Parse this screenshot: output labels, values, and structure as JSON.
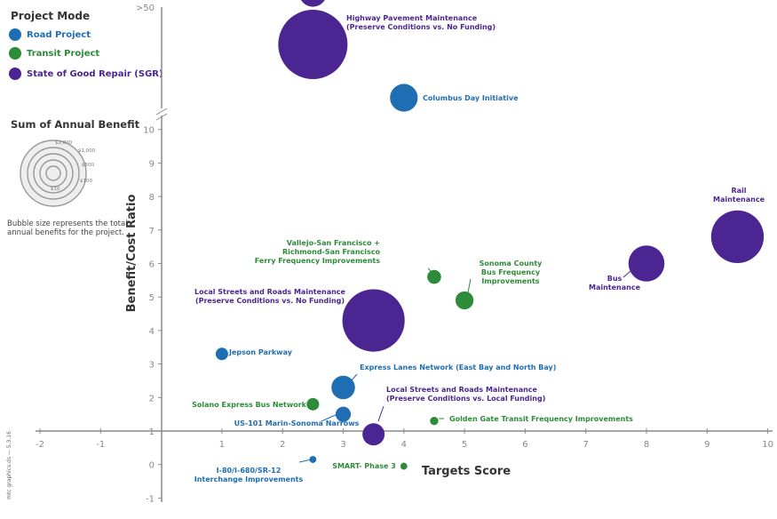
{
  "legend": {
    "title": "Project Mode",
    "items": [
      {
        "label": "Road Project",
        "color": "#1f6db3"
      },
      {
        "label": "Transit Project",
        "color": "#2e8b3a"
      },
      {
        "label": "State of Good Repair (SGR)",
        "color": "#4b2591"
      }
    ]
  },
  "size_legend": {
    "title": "Sum of Annual Benefit",
    "rings": [
      "$2,000",
      "$1,000",
      "$500",
      "$100",
      "$10"
    ],
    "note": "Bubble size represents the total annual benefits for the project."
  },
  "credit": "mtc graphics.ds — 5.3.16",
  "chart_data": {
    "type": "scatter",
    "xlabel": "Targets Score",
    "ylabel": "Benefit/Cost Ratio",
    "xlim": [
      -2,
      10
    ],
    "ylim": [
      -1,
      10
    ],
    "x_ticks": [
      -2,
      -1,
      1,
      2,
      3,
      4,
      5,
      6,
      7,
      8,
      9,
      10
    ],
    "y_ticks": [
      -1,
      0,
      1,
      2,
      3,
      4,
      5,
      6,
      7,
      8,
      9,
      10
    ],
    "y_break_label": ">50",
    "grid": false,
    "points": [
      {
        "label": "Highway Pavement Maintenance\n(Preserve Conditions vs. No Funding)",
        "x": 2.5,
        "y": ">50",
        "size": 5,
        "mode": "SGR"
      },
      {
        "label": "",
        "x": 2.5,
        "y": ">50",
        "size": 2,
        "mode": "SGR"
      },
      {
        "label": "Columbus Day Initiative",
        "x": 4.0,
        "y": 10.3,
        "size": 2,
        "mode": "Road"
      },
      {
        "label": "Rail\nMaintenance",
        "x": 9.5,
        "y": 6.8,
        "size": 3.8,
        "mode": "SGR"
      },
      {
        "label": "Bus\nMaintenance",
        "x": 8.0,
        "y": 6.0,
        "size": 2.6,
        "mode": "SGR"
      },
      {
        "label": "Vallejo-San Francisco +\nRichmond-San Francisco\nFerry Frequency Improvements",
        "x": 4.5,
        "y": 5.6,
        "size": 1,
        "mode": "Transit"
      },
      {
        "label": "Sonoma County\nBus Frequency\nImprovements",
        "x": 5.0,
        "y": 4.9,
        "size": 1.3,
        "mode": "Transit"
      },
      {
        "label": "Local Streets and Roads Maintenance\n(Preserve Conditions vs. No Funding)",
        "x": 3.5,
        "y": 4.3,
        "size": 4.5,
        "mode": "SGR"
      },
      {
        "label": "Jepson Parkway",
        "x": 1.0,
        "y": 3.3,
        "size": 0.9,
        "mode": "Road"
      },
      {
        "label": "Express Lanes Network (East Bay and North Bay)",
        "x": 3.0,
        "y": 2.3,
        "size": 1.7,
        "mode": "Road"
      },
      {
        "label": "Solano Express Bus Network",
        "x": 2.5,
        "y": 1.8,
        "size": 0.9,
        "mode": "Transit"
      },
      {
        "label": "US-101 Marin-Sonoma Narrows",
        "x": 3.0,
        "y": 1.5,
        "size": 1.1,
        "mode": "Road"
      },
      {
        "label": "Local Streets and Roads Maintenance\n(Preserve Conditions vs. Local Funding)",
        "x": 3.5,
        "y": 0.9,
        "size": 1.6,
        "mode": "SGR"
      },
      {
        "label": "Golden Gate Transit Frequency Improvements",
        "x": 4.5,
        "y": 1.3,
        "size": 0.6,
        "mode": "Transit"
      },
      {
        "label": "I-80/I-680/SR-12\nInterchange Improvements",
        "x": 2.5,
        "y": 0.15,
        "size": 0.5,
        "mode": "Road"
      },
      {
        "label": "SMART- Phase 3",
        "x": 4.0,
        "y": -0.05,
        "size": 0.5,
        "mode": "Transit"
      }
    ]
  }
}
